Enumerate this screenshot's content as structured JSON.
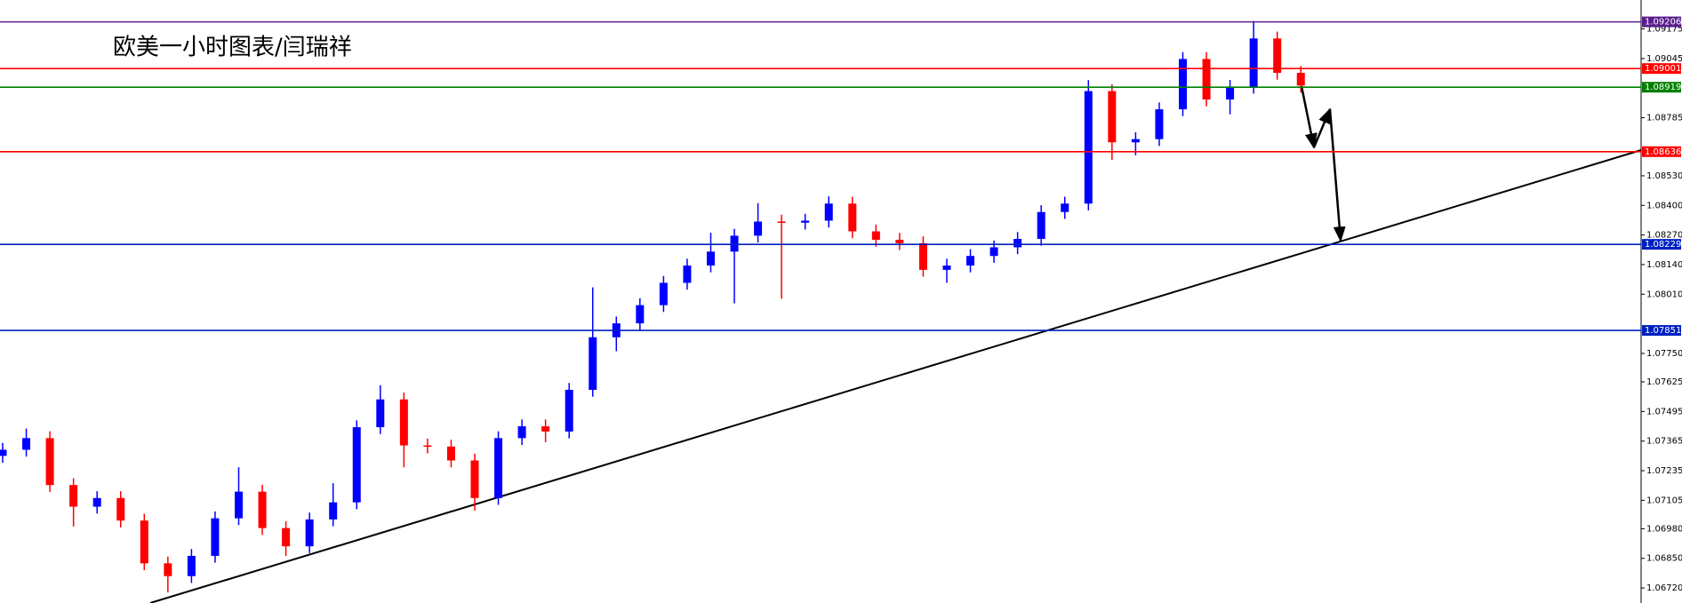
{
  "chart_data": {
    "type": "candlestick",
    "title": "欧美一小时图表/闫瑞祥",
    "up_color": "#0000ff",
    "down_color": "#ff0000",
    "ylim": [
      1.06654,
      1.09302
    ],
    "yticks": [
      1.09175,
      1.09045,
      1.08785,
      {
        "value": 1.0853,
        "label": "1.08530"
      },
      {
        "value": 1.084,
        "label": "1.08400"
      },
      {
        "value": 1.0827,
        "label": "1.08270"
      },
      {
        "value": 1.0814,
        "label": "1.08140"
      },
      {
        "value": 1.0801,
        "label": "1.08010"
      },
      {
        "value": 1.0775,
        "label": "1.07750"
      },
      1.07625,
      1.07495,
      1.07365,
      1.07235,
      1.07105,
      {
        "value": 1.0698,
        "label": "1.06980"
      },
      {
        "value": 1.0685,
        "label": "1.06850"
      },
      {
        "value": 1.0672,
        "label": "1.06720"
      }
    ],
    "levels": [
      {
        "value": 1.09206,
        "color": "#5a1e8c"
      },
      {
        "value": 1.09001,
        "color": "#ff0000"
      },
      {
        "value": 1.08919,
        "color": "#008000"
      },
      {
        "value": 1.08636,
        "color": "#ff0000"
      },
      {
        "value": 1.08229,
        "color": "#0020c0"
      },
      {
        "value": 1.07851,
        "color": "#0020c0"
      }
    ],
    "open": [
      1.073,
      1.07327,
      1.07378,
      1.07172,
      1.07077,
      1.07115,
      1.07016,
      1.06828,
      1.06772,
      1.06861,
      1.07026,
      1.07143,
      1.06983,
      1.06903,
      1.07021,
      1.07096,
      1.07426,
      1.07548,
      1.07346,
      1.07341,
      1.0728,
      1.07115,
      1.07378,
      1.0743,
      1.07407,
      1.0759,
      1.07821,
      1.07882,
      1.07962,
      1.0806,
      1.08136,
      1.08197,
      1.08267,
      1.08329,
      1.08324,
      1.08333,
      1.08408,
      1.08286,
      1.08249,
      1.08234,
      1.08117,
      1.08136,
      1.08178,
      1.08216,
      1.08253,
      1.08371,
      1.08408,
      1.08902,
      1.08677,
      1.08691,
      1.08822,
      1.09043,
      1.08865,
      1.08921,
      1.09133,
      1.08982
    ],
    "high": [
      1.07357,
      1.0742,
      1.07408,
      1.07202,
      1.07145,
      1.07145,
      1.07046,
      1.06858,
      1.06891,
      1.07056,
      1.0725,
      1.07173,
      1.07013,
      1.07051,
      1.0718,
      1.07456,
      1.0761,
      1.07578,
      1.07376,
      1.07371,
      1.0731,
      1.07408,
      1.0746,
      1.0746,
      1.0762,
      1.0804,
      1.07912,
      1.07992,
      1.0809,
      1.08166,
      1.0828,
      1.08297,
      1.0841,
      1.08359,
      1.08363,
      1.0844,
      1.08438,
      1.08316,
      1.08279,
      1.08264,
      1.08166,
      1.08208,
      1.08246,
      1.08283,
      1.08401,
      1.08438,
      1.0895,
      1.08932,
      1.08721,
      1.08852,
      1.09073,
      1.09073,
      1.08951,
      1.0921,
      1.09163,
      1.09012
    ],
    "low": [
      1.0727,
      1.07297,
      1.07142,
      1.0699,
      1.07047,
      1.06986,
      1.06798,
      1.067,
      1.06742,
      1.06831,
      1.06996,
      1.06953,
      1.0686,
      1.06873,
      1.06991,
      1.07066,
      1.07396,
      1.0725,
      1.07311,
      1.0725,
      1.0706,
      1.07085,
      1.07348,
      1.0736,
      1.07377,
      1.0756,
      1.0776,
      1.07852,
      1.07932,
      1.0803,
      1.08106,
      1.0797,
      1.08237,
      1.0799,
      1.08294,
      1.08303,
      1.08256,
      1.08219,
      1.08204,
      1.08087,
      1.0806,
      1.08106,
      1.08148,
      1.08186,
      1.08223,
      1.08341,
      1.08378,
      1.086,
      1.0862,
      1.08661,
      1.08792,
      1.08835,
      1.088,
      1.08891,
      1.08952,
      1.08896
    ],
    "close": [
      1.07327,
      1.07378,
      1.07172,
      1.07077,
      1.07115,
      1.07016,
      1.06828,
      1.06772,
      1.06861,
      1.07026,
      1.07143,
      1.06983,
      1.06903,
      1.07021,
      1.07096,
      1.07426,
      1.07548,
      1.07346,
      1.07341,
      1.0728,
      1.07115,
      1.07378,
      1.0743,
      1.07407,
      1.0759,
      1.07821,
      1.07882,
      1.07962,
      1.0806,
      1.08136,
      1.08197,
      1.08267,
      1.08329,
      1.08324,
      1.08333,
      1.08408,
      1.08286,
      1.08249,
      1.08234,
      1.08117,
      1.08136,
      1.08178,
      1.08216,
      1.08253,
      1.08371,
      1.08408,
      1.08902,
      1.08677,
      1.08691,
      1.08822,
      1.09043,
      1.08865,
      1.08921,
      1.09133,
      1.08982,
      1.08926
    ]
  }
}
